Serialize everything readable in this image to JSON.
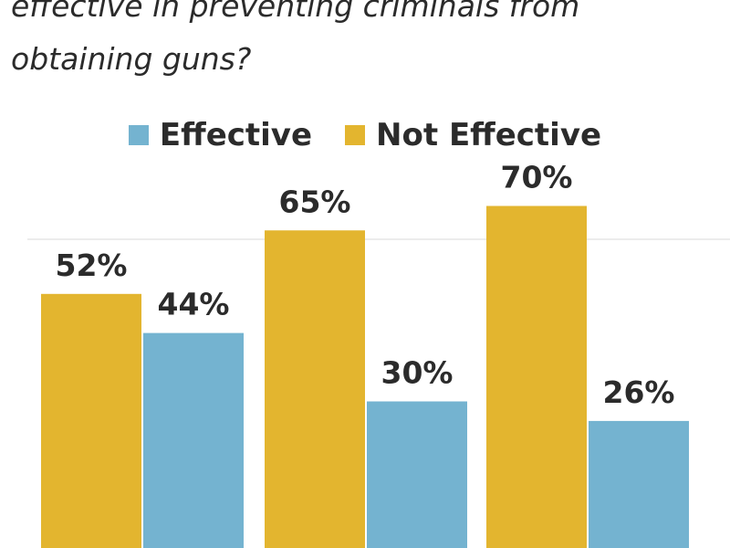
{
  "question_text": "effective in preventing criminals from obtaining guns?",
  "chart_data": {
    "type": "bar",
    "categories": [
      "",
      "",
      ""
    ],
    "series": [
      {
        "name": "Not Effective",
        "color": "#e3b52f",
        "values": [
          52,
          65,
          70
        ]
      },
      {
        "name": "Effective",
        "color": "#74b3d0",
        "values": [
          44,
          30,
          26
        ]
      }
    ],
    "value_suffix": "%",
    "grid": true,
    "legend_position": "top-center"
  },
  "legend": [
    {
      "label": "Effective",
      "color": "#74b3d0"
    },
    {
      "label": "Not Effective",
      "color": "#e3b52f"
    }
  ]
}
